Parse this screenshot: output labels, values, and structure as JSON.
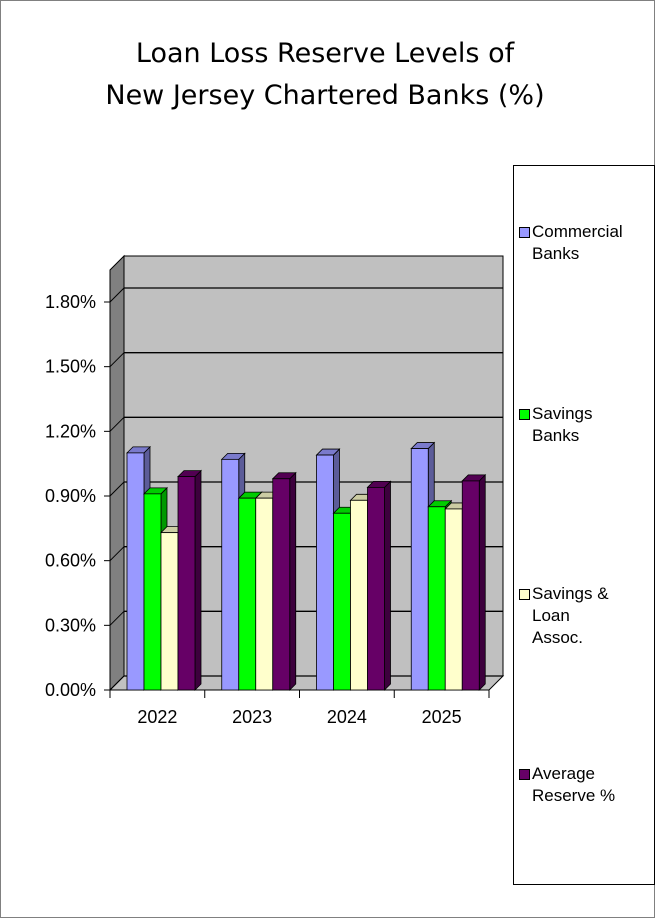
{
  "title_lines": [
    "Loan Loss Reserve Levels of",
    "New Jersey Chartered Banks (%)"
  ],
  "chart_data": {
    "type": "bar",
    "title": "Loan Loss Reserve Levels of New Jersey Chartered Banks (%)",
    "categories": [
      "2022",
      "2023",
      "2024",
      "2025"
    ],
    "series": [
      {
        "name": "Commercial Banks",
        "legend": "Commercial\nBanks",
        "color": "#9999ff",
        "values": [
          1.1,
          1.07,
          1.09,
          1.12
        ]
      },
      {
        "name": "Savings Banks",
        "legend": "Savings\nBanks",
        "color": "#00ff00",
        "values": [
          0.91,
          0.89,
          0.82,
          0.85
        ]
      },
      {
        "name": "Savings & Loan Assoc.",
        "legend": "Savings &\nLoan\nAssoc.",
        "color": "#ffffcc",
        "values": [
          0.73,
          0.89,
          0.88,
          0.84
        ]
      },
      {
        "name": "Average Reserve %",
        "legend": "Average\nReserve %",
        "color": "#660066",
        "values": [
          0.99,
          0.98,
          0.94,
          0.97
        ]
      }
    ],
    "yticks": [
      "0.00%",
      "0.30%",
      "0.60%",
      "0.90%",
      "1.20%",
      "1.50%",
      "1.80%"
    ],
    "ylim": [
      0,
      1.8
    ],
    "grid": true,
    "legend_position": "right",
    "wall_color": "#c0c0c0"
  }
}
